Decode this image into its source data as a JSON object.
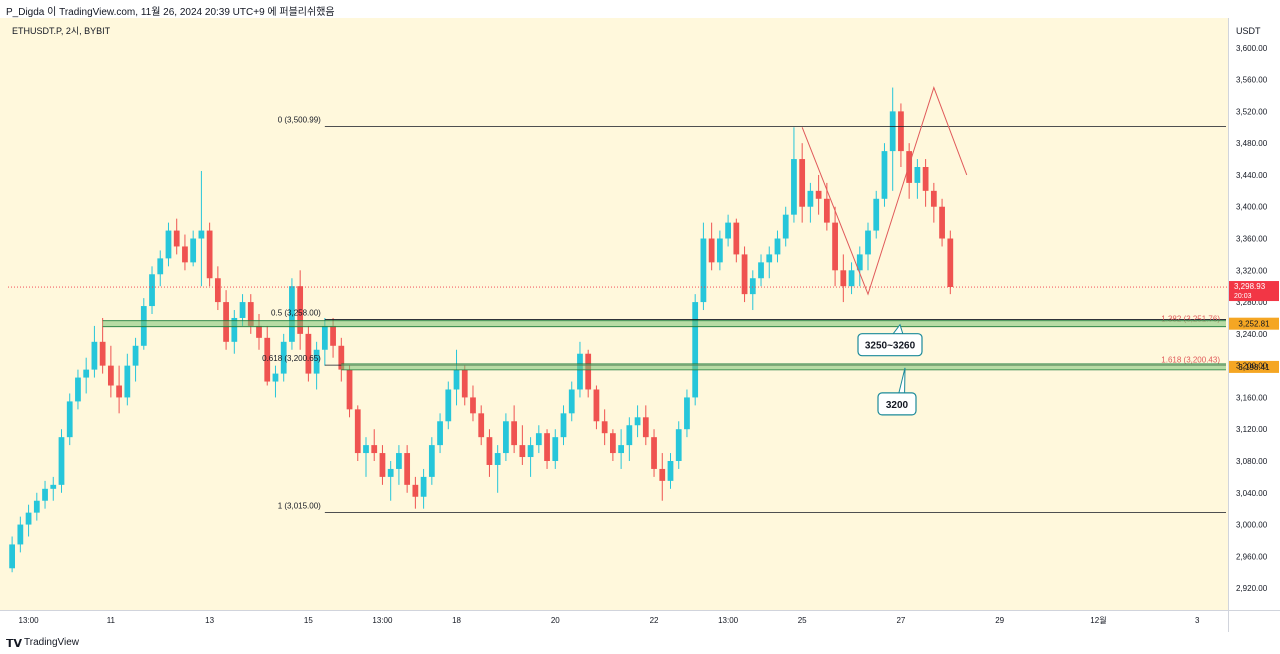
{
  "header": {
    "publisher_line": "P_Digda 이 TradingView.com, 11월 26, 2024 20:39 UTC+9 에 퍼블리쉬했음"
  },
  "symbol_line": "ETHUSDT.P, 2시, BYBIT",
  "price_unit": "USDT",
  "footer": {
    "brand": "TradingView"
  },
  "colors": {
    "up": "#26c6da",
    "down": "#ef5350",
    "background": "#fff8dc",
    "zone_green": "#7cc576",
    "zone_orange": "#f5a623",
    "last_price": "#f23645"
  },
  "chart_data": {
    "type": "candlestick",
    "title": "",
    "xlabel": "",
    "ylabel": "",
    "ylim": [
      2895,
      3635
    ],
    "y_ticks": [
      3600,
      3560,
      3520,
      3480,
      3440,
      3400,
      3360,
      3320,
      3280,
      3240,
      3200,
      3160,
      3120,
      3080,
      3040,
      3000,
      2960,
      2920
    ],
    "y_tick_labels": [
      "3,600.00",
      "3,560.00",
      "3,520.00",
      "3,480.00",
      "3,440.00",
      "3,400.00",
      "3,360.00",
      "3,320.00",
      "3,280.00",
      "3,240.00",
      "3,200.00",
      "3,160.00",
      "3,120.00",
      "3,080.00",
      "3,040.00",
      "3,000.00",
      "2,960.00",
      "2,920.00"
    ],
    "x_ticks": [
      {
        "label": "13:00",
        "bar": 2
      },
      {
        "label": "11",
        "bar": 12
      },
      {
        "label": "13",
        "bar": 24
      },
      {
        "label": "15",
        "bar": 36
      },
      {
        "label": "13:00",
        "bar": 45
      },
      {
        "label": "18",
        "bar": 54
      },
      {
        "label": "20",
        "bar": 66
      },
      {
        "label": "22",
        "bar": 78
      },
      {
        "label": "13:00",
        "bar": 87
      },
      {
        "label": "25",
        "bar": 96
      },
      {
        "label": "27",
        "bar": 108
      },
      {
        "label": "29",
        "bar": 120
      },
      {
        "label": "12월",
        "bar": 132
      },
      {
        "label": "3",
        "bar": 144
      }
    ],
    "total_slots": 148,
    "candles": [
      [
        2945,
        2985,
        2940,
        2975
      ],
      [
        2975,
        3010,
        2965,
        3000
      ],
      [
        3000,
        3025,
        2985,
        3015
      ],
      [
        3015,
        3040,
        3005,
        3030
      ],
      [
        3030,
        3055,
        3020,
        3045
      ],
      [
        3045,
        3060,
        3030,
        3050
      ],
      [
        3050,
        3120,
        3040,
        3110
      ],
      [
        3110,
        3165,
        3100,
        3155
      ],
      [
        3155,
        3195,
        3145,
        3185
      ],
      [
        3185,
        3210,
        3165,
        3195
      ],
      [
        3195,
        3250,
        3185,
        3230
      ],
      [
        3230,
        3260,
        3190,
        3200
      ],
      [
        3200,
        3225,
        3160,
        3175
      ],
      [
        3175,
        3200,
        3140,
        3160
      ],
      [
        3160,
        3215,
        3150,
        3200
      ],
      [
        3200,
        3235,
        3180,
        3225
      ],
      [
        3225,
        3285,
        3220,
        3275
      ],
      [
        3275,
        3325,
        3265,
        3315
      ],
      [
        3315,
        3345,
        3300,
        3335
      ],
      [
        3335,
        3380,
        3325,
        3370
      ],
      [
        3370,
        3385,
        3340,
        3350
      ],
      [
        3350,
        3365,
        3320,
        3330
      ],
      [
        3330,
        3370,
        3325,
        3360
      ],
      [
        3360,
        3445,
        3300,
        3370
      ],
      [
        3370,
        3380,
        3300,
        3310
      ],
      [
        3310,
        3325,
        3270,
        3280
      ],
      [
        3280,
        3295,
        3220,
        3230
      ],
      [
        3230,
        3270,
        3215,
        3260
      ],
      [
        3260,
        3290,
        3250,
        3280
      ],
      [
        3280,
        3290,
        3240,
        3250
      ],
      [
        3250,
        3265,
        3220,
        3235
      ],
      [
        3235,
        3250,
        3175,
        3180
      ],
      [
        3180,
        3200,
        3160,
        3190
      ],
      [
        3190,
        3240,
        3180,
        3230
      ],
      [
        3230,
        3310,
        3220,
        3300
      ],
      [
        3300,
        3320,
        3220,
        3240
      ],
      [
        3240,
        3250,
        3180,
        3190
      ],
      [
        3190,
        3230,
        3170,
        3220
      ],
      [
        3220,
        3260,
        3200,
        3250
      ],
      [
        3250,
        3260,
        3210,
        3225
      ],
      [
        3225,
        3235,
        3180,
        3195
      ],
      [
        3195,
        3200,
        3135,
        3145
      ],
      [
        3145,
        3150,
        3080,
        3090
      ],
      [
        3090,
        3110,
        3060,
        3100
      ],
      [
        3100,
        3120,
        3080,
        3090
      ],
      [
        3090,
        3100,
        3050,
        3060
      ],
      [
        3060,
        3080,
        3030,
        3070
      ],
      [
        3070,
        3100,
        3050,
        3090
      ],
      [
        3090,
        3100,
        3040,
        3050
      ],
      [
        3050,
        3060,
        3020,
        3035
      ],
      [
        3035,
        3070,
        3020,
        3060
      ],
      [
        3060,
        3110,
        3050,
        3100
      ],
      [
        3100,
        3140,
        3090,
        3130
      ],
      [
        3130,
        3180,
        3120,
        3170
      ],
      [
        3170,
        3220,
        3150,
        3195
      ],
      [
        3195,
        3200,
        3150,
        3160
      ],
      [
        3160,
        3175,
        3130,
        3140
      ],
      [
        3140,
        3150,
        3100,
        3110
      ],
      [
        3110,
        3120,
        3060,
        3075
      ],
      [
        3075,
        3100,
        3040,
        3090
      ],
      [
        3090,
        3140,
        3080,
        3130
      ],
      [
        3130,
        3150,
        3090,
        3100
      ],
      [
        3100,
        3125,
        3075,
        3085
      ],
      [
        3085,
        3110,
        3060,
        3100
      ],
      [
        3100,
        3125,
        3090,
        3115
      ],
      [
        3115,
        3120,
        3070,
        3080
      ],
      [
        3080,
        3120,
        3070,
        3110
      ],
      [
        3110,
        3150,
        3100,
        3140
      ],
      [
        3140,
        3180,
        3130,
        3170
      ],
      [
        3170,
        3230,
        3160,
        3215
      ],
      [
        3215,
        3220,
        3160,
        3170
      ],
      [
        3170,
        3175,
        3120,
        3130
      ],
      [
        3130,
        3145,
        3100,
        3115
      ],
      [
        3115,
        3120,
        3080,
        3090
      ],
      [
        3090,
        3120,
        3070,
        3100
      ],
      [
        3100,
        3135,
        3080,
        3125
      ],
      [
        3125,
        3150,
        3110,
        3135
      ],
      [
        3135,
        3150,
        3100,
        3110
      ],
      [
        3110,
        3120,
        3060,
        3070
      ],
      [
        3070,
        3090,
        3030,
        3055
      ],
      [
        3055,
        3090,
        3045,
        3080
      ],
      [
        3080,
        3130,
        3070,
        3120
      ],
      [
        3120,
        3170,
        3110,
        3160
      ],
      [
        3160,
        3290,
        3150,
        3280
      ],
      [
        3280,
        3380,
        3270,
        3360
      ],
      [
        3360,
        3380,
        3320,
        3330
      ],
      [
        3330,
        3370,
        3320,
        3360
      ],
      [
        3360,
        3390,
        3350,
        3380
      ],
      [
        3380,
        3385,
        3330,
        3340
      ],
      [
        3340,
        3350,
        3280,
        3290
      ],
      [
        3290,
        3320,
        3270,
        3310
      ],
      [
        3310,
        3340,
        3300,
        3330
      ],
      [
        3330,
        3350,
        3310,
        3340
      ],
      [
        3340,
        3370,
        3330,
        3360
      ],
      [
        3360,
        3400,
        3350,
        3390
      ],
      [
        3390,
        3500,
        3380,
        3460
      ],
      [
        3460,
        3480,
        3380,
        3400
      ],
      [
        3400,
        3430,
        3380,
        3420
      ],
      [
        3420,
        3440,
        3390,
        3410
      ],
      [
        3410,
        3430,
        3370,
        3380
      ],
      [
        3380,
        3400,
        3300,
        3320
      ],
      [
        3320,
        3340,
        3280,
        3300
      ],
      [
        3300,
        3330,
        3290,
        3320
      ],
      [
        3320,
        3350,
        3300,
        3340
      ],
      [
        3340,
        3380,
        3320,
        3370
      ],
      [
        3370,
        3420,
        3360,
        3410
      ],
      [
        3410,
        3480,
        3400,
        3470
      ],
      [
        3470,
        3550,
        3420,
        3520
      ],
      [
        3520,
        3530,
        3450,
        3470
      ],
      [
        3470,
        3480,
        3410,
        3430
      ],
      [
        3430,
        3460,
        3410,
        3450
      ],
      [
        3450,
        3460,
        3400,
        3420
      ],
      [
        3420,
        3430,
        3380,
        3400
      ],
      [
        3400,
        3410,
        3350,
        3360
      ],
      [
        3360,
        3370,
        3290,
        3299
      ]
    ],
    "fib_levels": [
      {
        "label": "0 (3,500.99)",
        "value": 3500.99
      },
      {
        "label": "0.5 (3,258.00)",
        "value": 3258.0
      },
      {
        "label": "0.618 (3,200.65)",
        "value": 3200.65
      },
      {
        "label": "1 (3,015.00)",
        "value": 3015.0
      }
    ],
    "ext_levels": [
      {
        "label": "1.382 (3,251.76)",
        "value": 3251.76
      },
      {
        "label": "1.618 (3,200.43)",
        "value": 3200.43
      }
    ],
    "zones": [
      {
        "price_tag": "3,252.81",
        "value": 3252.81,
        "callout": "3250~3260"
      },
      {
        "price_tag": "3,198.41",
        "value": 3198.41,
        "callout": "3200"
      }
    ],
    "last_price": {
      "value": 3298.93,
      "label": "3,298.93",
      "time": "20:03"
    }
  }
}
